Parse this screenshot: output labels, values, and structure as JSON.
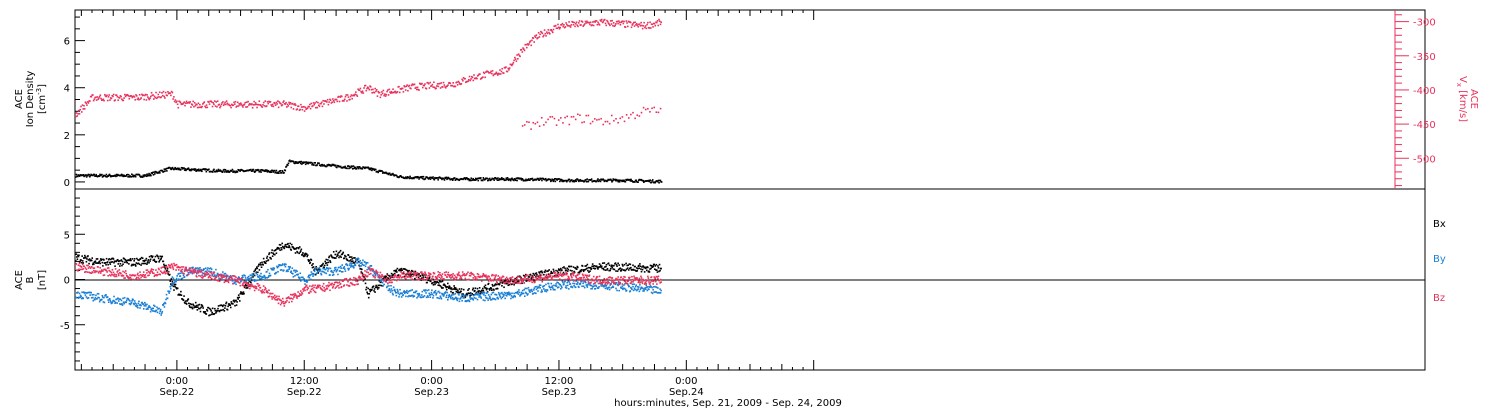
{
  "colors": {
    "black": "#000000",
    "pink": "#e8325c",
    "blue": "#1a7fd4"
  },
  "xaxis": {
    "hours": [
      -24,
      0,
      24,
      48,
      72,
      96
    ],
    "start_hour": -21.6,
    "end_hour": 105.6,
    "ticks": [
      {
        "hour": -12,
        "time": "0:00",
        "date": "Sep.22"
      },
      {
        "hour": 0,
        "time": "12:00",
        "date": "Sep.22"
      },
      {
        "hour": 12,
        "time": "0:00",
        "date": "Sep.23"
      },
      {
        "hour": 24,
        "time": "12:00",
        "date": "Sep.23"
      },
      {
        "hour": 36,
        "time": "0:00",
        "date": "Sep.24"
      }
    ],
    "title": "hours:minutes, Sep. 21, 2009 - Sep. 24, 2009"
  },
  "chart_data": [
    {
      "type": "scatter",
      "ylabel": "ACE Ion Density [cm⁻³]",
      "ylim": [
        -0.3,
        7.3
      ],
      "yticks": [
        0,
        2,
        4,
        6
      ],
      "series": [
        {
          "name": "Ion Density",
          "axis": "left",
          "color": "#000000",
          "x": [
            -21.6,
            -15,
            -12.7,
            -8,
            -4,
            -2,
            -1.5,
            3,
            6,
            9,
            11,
            15,
            20,
            25,
            30,
            33.6
          ],
          "y": [
            0.3,
            0.3,
            0.6,
            0.5,
            0.5,
            0.45,
            0.9,
            0.7,
            0.6,
            0.25,
            0.2,
            0.15,
            0.15,
            0.1,
            0.1,
            0.05
          ]
        }
      ]
    },
    {
      "type": "scatter",
      "ylabel": "ACE Vₓ [km/s]",
      "ylim": [
        -545,
        -283
      ],
      "yticks": [
        -300,
        -350,
        -400,
        -450,
        -500
      ],
      "series": [
        {
          "name": "Vx",
          "axis": "right",
          "color": "#e8325c",
          "x": [
            -21.6,
            -20,
            -16,
            -12.5,
            -12,
            -8,
            -4,
            -2,
            0,
            4,
            6,
            7,
            10,
            14,
            16,
            19,
            20.5,
            22,
            24,
            28,
            32,
            33.6
          ],
          "y": [
            -435,
            -410,
            -410,
            -405,
            -420,
            -420,
            -420,
            -420,
            -425,
            -410,
            -395,
            -405,
            -395,
            -390,
            -380,
            -370,
            -340,
            -320,
            -305,
            -300,
            -305,
            -300
          ],
          "x2": [
            20.5,
            22,
            24,
            26,
            28,
            30,
            32,
            33.6
          ],
          "y2": [
            -455,
            -445,
            -445,
            -440,
            -445,
            -440,
            -430,
            -430
          ]
        }
      ]
    },
    {
      "type": "scatter",
      "ylabel": "ACE B [nT]",
      "ylim": [
        -10,
        10
      ],
      "yticks": [
        -5,
        0,
        5
      ],
      "series": [
        {
          "name": "Bx",
          "color": "#000000",
          "x": [
            -21.6,
            -19,
            -16,
            -13.5,
            -12.5,
            -11,
            -9,
            -6.5,
            -4,
            -2,
            0,
            1,
            3,
            5,
            6,
            8,
            9,
            12,
            15,
            20,
            24,
            28,
            33.6
          ],
          "y": [
            2.5,
            2,
            2,
            2.5,
            -0.5,
            -2.5,
            -3.5,
            -2.5,
            2,
            4,
            3,
            1,
            3,
            2,
            -1.5,
            0.5,
            1,
            0,
            -1.5,
            0,
            1,
            1.5,
            1.3
          ]
        },
        {
          "name": "By",
          "color": "#1a7fd4",
          "x": [
            -21.6,
            -19,
            -16,
            -13.5,
            -12.5,
            -11,
            -9,
            -6.5,
            -4,
            -2,
            0,
            1,
            3,
            5,
            6,
            8,
            9,
            12,
            15,
            20,
            24,
            28,
            33.6
          ],
          "y": [
            -1.5,
            -2,
            -2.5,
            -3.5,
            0,
            1,
            1,
            0,
            0.5,
            1.5,
            0,
            1,
            1,
            2,
            1.5,
            -1,
            -1.5,
            -1.5,
            -2,
            -1.5,
            -0.5,
            -0.5,
            -1.2
          ]
        },
        {
          "name": "Bz",
          "color": "#e8325c",
          "x": [
            -21.6,
            -19,
            -16,
            -13.5,
            -12.5,
            -11,
            -9,
            -6.5,
            -4,
            -2,
            0,
            1,
            3,
            5,
            6,
            8,
            9,
            12,
            15,
            20,
            24,
            28,
            33.6
          ],
          "y": [
            1.5,
            1,
            0.5,
            1,
            1.5,
            1,
            0.5,
            0,
            -1,
            -2.5,
            -1,
            -1,
            -0.5,
            0,
            1,
            0,
            0.5,
            0.5,
            0.5,
            0,
            0.5,
            0,
            0
          ]
        }
      ]
    }
  ],
  "legend": {
    "bx": "Bx",
    "by": "By",
    "bz": "Bz"
  },
  "labels": {
    "top_left": "ACE",
    "top_left2": "Ion Density",
    "top_left_unit": "[cm",
    "top_left_sup": "-3",
    "top_left_close": "]",
    "top_right": "ACE",
    "top_right_v": "V",
    "top_right_sub": "x",
    "top_right_unit": "[km/s]",
    "bottom_left": "ACE",
    "bottom_left2": "B",
    "bottom_left_unit": "[nT]"
  }
}
